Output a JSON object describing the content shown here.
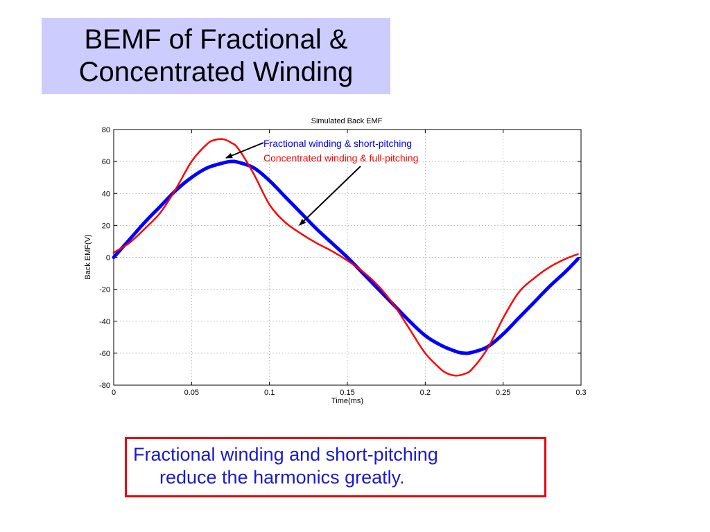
{
  "slide": {
    "title_line1": "BEMF of Fractional &",
    "title_line2": "Concentrated Winding",
    "note_line1": "Fractional winding and short-pitching",
    "note_line2": "reduce the harmonics greatly.",
    "title_bg_color": "#ccccff",
    "note_border_color": "#e8000c",
    "note_text_color": "#1a1acc"
  },
  "chart_data": {
    "type": "line",
    "title": "Simulated Back EMF",
    "xlabel": "Time(ms)",
    "ylabel": "Back EMF(V)",
    "xlim": [
      0,
      0.3
    ],
    "ylim": [
      -80,
      80
    ],
    "xticks": [
      0,
      0.05,
      0.1,
      0.15,
      0.2,
      0.25,
      0.3
    ],
    "xtick_labels": [
      "0",
      "0.05",
      "0.1",
      "0.15",
      "0.2",
      "0.25",
      "0.3"
    ],
    "yticks": [
      80,
      60,
      40,
      20,
      0,
      -20,
      -40,
      -60,
      -80
    ],
    "ytick_labels": [
      "80",
      "60",
      "40",
      "20",
      "0",
      "-20",
      "-40",
      "-60",
      "-80"
    ],
    "grid": true,
    "annotations": [
      {
        "text": "Fractional winding & short-pitching",
        "color": "#0000ff",
        "points_to_series": 0
      },
      {
        "text": "Concentrated winding & full-pitching",
        "color": "#ff0000",
        "points_to_series": 1
      }
    ],
    "series": [
      {
        "color": "#0000ff",
        "x": [
          0,
          0.01,
          0.02,
          0.03,
          0.04,
          0.05,
          0.06,
          0.07,
          0.075,
          0.08,
          0.09,
          0.1,
          0.11,
          0.12,
          0.13,
          0.14,
          0.15,
          0.16,
          0.17,
          0.18,
          0.19,
          0.2,
          0.21,
          0.22,
          0.225,
          0.23,
          0.24,
          0.25,
          0.26,
          0.27,
          0.28,
          0.29,
          0.298
        ],
        "values": [
          0,
          11,
          22,
          32,
          42,
          50,
          56,
          59,
          60,
          59.5,
          56,
          48,
          38,
          28,
          18,
          9,
          0,
          -10,
          -20,
          -30,
          -40,
          -49,
          -55,
          -59,
          -60,
          -59.5,
          -56,
          -48,
          -38,
          -28,
          -18,
          -9,
          -1
        ]
      },
      {
        "color": "#ff0000",
        "x": [
          0,
          0.01,
          0.02,
          0.03,
          0.04,
          0.05,
          0.06,
          0.065,
          0.07,
          0.075,
          0.08,
          0.09,
          0.1,
          0.11,
          0.12,
          0.13,
          0.14,
          0.15,
          0.16,
          0.17,
          0.18,
          0.19,
          0.2,
          0.21,
          0.215,
          0.22,
          0.225,
          0.23,
          0.24,
          0.25,
          0.26,
          0.27,
          0.28,
          0.29,
          0.298
        ],
        "values": [
          3,
          9,
          18,
          28,
          43,
          60,
          71,
          73.5,
          74,
          72,
          68,
          52,
          33,
          22,
          15,
          9,
          4,
          -2,
          -9,
          -18,
          -30,
          -45,
          -60,
          -70,
          -73,
          -74,
          -73,
          -70,
          -57,
          -38,
          -22,
          -13,
          -6,
          -1,
          2
        ]
      }
    ]
  }
}
